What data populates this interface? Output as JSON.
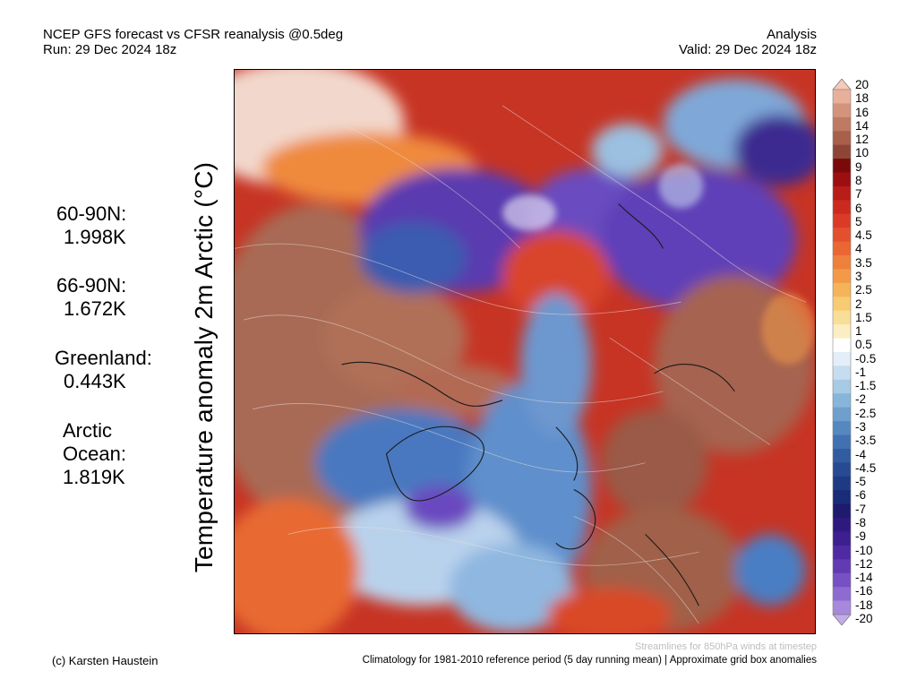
{
  "header": {
    "title_line1": "NCEP GFS forecast vs CFSR reanalysis @0.5deg",
    "title_line2": "Run: 29 Dec 2024 18z",
    "right_line1": "Analysis",
    "right_line2": "Valid: 29 Dec 2024 18z"
  },
  "vertical_title": "Temperature anomaly 2m Arctic (°C)",
  "stats": [
    {
      "label": "60-90N:",
      "value": "1.998K"
    },
    {
      "label": "66-90N:",
      "value": "1.672K"
    },
    {
      "label": "Greenland:",
      "value": "0.443K"
    },
    {
      "label": "Arctic",
      "label2": "Ocean:",
      "value": "1.819K"
    }
  ],
  "colorbar": {
    "labels": [
      "20",
      "18",
      "16",
      "14",
      "12",
      "10",
      "9",
      "8",
      "7",
      "6",
      "5",
      "4.5",
      "4",
      "3.5",
      "3",
      "2.5",
      "2",
      "1.5",
      "1",
      "0.5",
      "-0.5",
      "-1",
      "-1.5",
      "-2",
      "-2.5",
      "-3",
      "-3.5",
      "-4",
      "-4.5",
      "-5",
      "-6",
      "-7",
      "-8",
      "-9",
      "-10",
      "-12",
      "-14",
      "-16",
      "-18",
      "-20"
    ],
    "colors": [
      "#f7c9b8",
      "#e8b09a",
      "#d4947c",
      "#bf7a64",
      "#a85f4c",
      "#8e4536",
      "#7a0a0a",
      "#9b0f10",
      "#b81d17",
      "#cc2a1f",
      "#db3b26",
      "#e4502e",
      "#ea6733",
      "#ef803c",
      "#f29a48",
      "#f5b459",
      "#f7cb72",
      "#f9de97",
      "#fbeec2",
      "#ffffff",
      "#e3eef8",
      "#c6ddef",
      "#a7cae5",
      "#88b5da",
      "#6e9fcd",
      "#5688c0",
      "#4271b1",
      "#325ca1",
      "#274a92",
      "#1f3a84",
      "#182c78",
      "#1f1a6e",
      "#2e1a7e",
      "#3d1f8f",
      "#4f2aa3",
      "#623ab3",
      "#7750c3",
      "#8d6bd0",
      "#a689dc",
      "#c3acea"
    ]
  },
  "footer": {
    "credit": "(c) Karsten Haustein",
    "streamlines_note": "Streamlines for 850hPa winds at timestep",
    "climatology_note": "Climatology for 1981-2010 reference period (5 day running mean) | Approximate grid box anomalies"
  }
}
